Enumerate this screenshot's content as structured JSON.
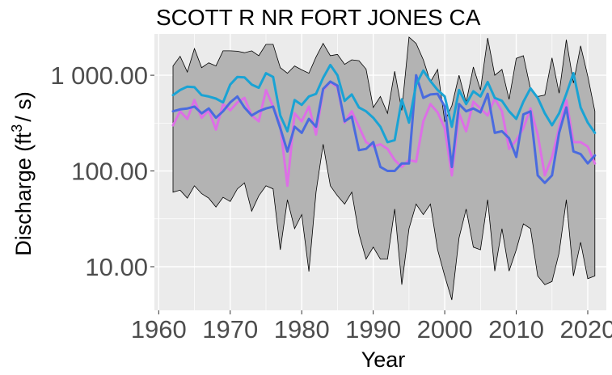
{
  "chart_data": {
    "type": "line",
    "title": "SCOTT R NR FORT JONES CA",
    "xlabel": "Year",
    "ylabel": {
      "pre": "Discharge (ft",
      "sup": "3",
      "post": "/ s)"
    },
    "xlim": [
      1959.4,
      2022.6
    ],
    "ylim": [
      3.5,
      2700
    ],
    "log_y": true,
    "grid": true,
    "x_ticks": [
      1960,
      1970,
      1980,
      1990,
      2000,
      2010,
      2020
    ],
    "y_ticks": [
      {
        "value": 10,
        "label": "10.00"
      },
      {
        "value": 100,
        "label": "100.00"
      },
      {
        "value": 1000,
        "label": "1 000.00"
      }
    ],
    "colors": {
      "panel_bg": "#ebebeb",
      "grid": "#ffffff",
      "band_fill": "#b3b3b3",
      "band_stroke": "#000000",
      "series_mean": "#1aa3d4",
      "series_median": "#4a6bdf",
      "series_other": "#dd6fe6"
    },
    "years": [
      1962,
      1963,
      1964,
      1965,
      1966,
      1967,
      1968,
      1969,
      1970,
      1971,
      1972,
      1973,
      1974,
      1975,
      1976,
      1977,
      1978,
      1979,
      1980,
      1981,
      1982,
      1983,
      1984,
      1985,
      1986,
      1987,
      1988,
      1989,
      1990,
      1991,
      1992,
      1993,
      1994,
      1995,
      1996,
      1997,
      1998,
      1999,
      2000,
      2001,
      2002,
      2003,
      2004,
      2005,
      2006,
      2007,
      2008,
      2009,
      2010,
      2011,
      2012,
      2013,
      2014,
      2015,
      2016,
      2017,
      2018,
      2019,
      2020,
      2021
    ],
    "band": {
      "upper": [
        1250,
        1580,
        1080,
        1900,
        1200,
        1350,
        1250,
        1800,
        1800,
        1780,
        1720,
        1800,
        1600,
        2100,
        2100,
        1200,
        1050,
        1250,
        1140,
        1050,
        1550,
        2150,
        1600,
        1650,
        1300,
        1450,
        1420,
        1160,
        460,
        600,
        400,
        1100,
        430,
        2500,
        2150,
        1450,
        850,
        1150,
        330,
        480,
        1000,
        520,
        1220,
        700,
        2450,
        1000,
        1150,
        560,
        1500,
        1600,
        720,
        600,
        620,
        1520,
        650,
        2350,
        830,
        2030,
        980,
        420
      ],
      "lower": [
        60,
        63,
        52,
        70,
        58,
        52,
        42,
        53,
        48,
        65,
        75,
        38,
        55,
        70,
        65,
        15,
        50,
        25,
        35,
        8.9,
        60,
        190,
        70,
        55,
        45,
        60,
        22,
        12,
        16,
        12,
        12,
        40,
        6.5,
        25,
        45,
        35,
        45,
        15,
        8,
        4.5,
        20,
        40,
        16,
        15,
        50,
        9,
        25,
        9,
        15,
        28,
        25,
        8,
        6.5,
        7,
        14,
        50,
        8,
        18,
        7.5,
        8
      ]
    },
    "series": [
      {
        "key": "series_other",
        "values": [
          300,
          420,
          350,
          550,
          360,
          430,
          270,
          500,
          430,
          520,
          580,
          380,
          330,
          700,
          470,
          300,
          70,
          400,
          330,
          470,
          240,
          700,
          850,
          750,
          320,
          420,
          290,
          200,
          180,
          190,
          170,
          130,
          110,
          130,
          125,
          330,
          500,
          410,
          280,
          90,
          400,
          260,
          530,
          450,
          380,
          570,
          420,
          170,
          210,
          280,
          450,
          240,
          90,
          140,
          280,
          550,
          200,
          200,
          180,
          120
        ]
      },
      {
        "key": "series_median",
        "values": [
          420,
          440,
          450,
          470,
          400,
          450,
          360,
          420,
          520,
          600,
          460,
          380,
          420,
          450,
          470,
          280,
          160,
          290,
          250,
          350,
          290,
          720,
          860,
          780,
          330,
          370,
          165,
          170,
          200,
          110,
          100,
          100,
          120,
          120,
          1000,
          580,
          630,
          640,
          470,
          110,
          500,
          420,
          450,
          410,
          640,
          250,
          260,
          220,
          140,
          390,
          420,
          90,
          75,
          90,
          250,
          460,
          160,
          150,
          120,
          145
        ]
      },
      {
        "key": "series_mean",
        "values": [
          620,
          700,
          760,
          750,
          620,
          600,
          570,
          520,
          800,
          960,
          950,
          800,
          740,
          1050,
          960,
          380,
          260,
          550,
          490,
          600,
          640,
          940,
          1280,
          1000,
          540,
          630,
          460,
          420,
          360,
          290,
          200,
          210,
          560,
          320,
          800,
          1120,
          870,
          700,
          600,
          290,
          700,
          500,
          680,
          600,
          850,
          580,
          540,
          420,
          350,
          530,
          730,
          580,
          400,
          300,
          400,
          640,
          1050,
          460,
          320,
          250
        ]
      }
    ]
  }
}
